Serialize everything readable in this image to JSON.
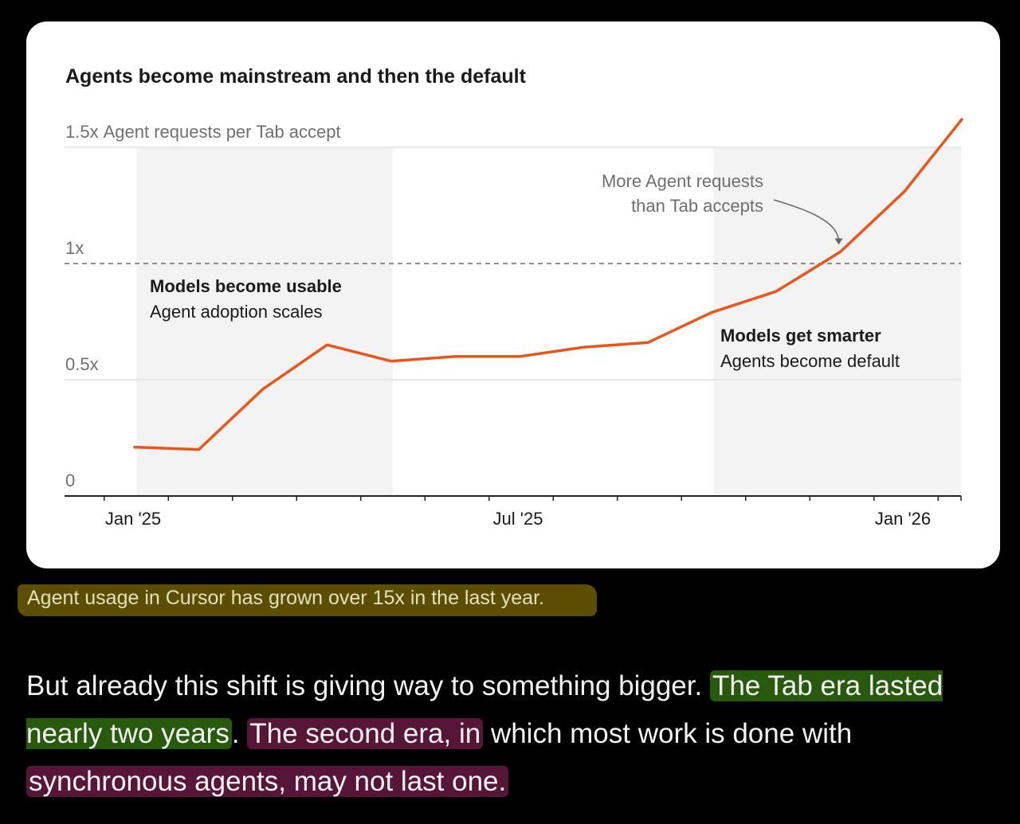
{
  "chart_data": {
    "type": "line",
    "title": "Agents become mainstream and then the default",
    "ylabel": "Agent requests per Tab accept",
    "y_tick_labels": [
      "0",
      "0.5x",
      "1x",
      "1.5x"
    ],
    "y_ticks": [
      0,
      0.5,
      1,
      1.5
    ],
    "ylim": [
      0,
      1.5
    ],
    "x_tick_labels": [
      "Jan '25",
      "Jul '25",
      "Jan '26"
    ],
    "x_tick_positions": [
      0,
      6,
      12
    ],
    "xlim": [
      -1,
      13
    ],
    "reference_line": 1,
    "grid": true,
    "series": [
      {
        "color": "#e8561b",
        "x": [
          0,
          1,
          2,
          3,
          4,
          5,
          6,
          7,
          8,
          9,
          10,
          11,
          12,
          13
        ],
        "values": [
          0.21,
          0.2,
          0.46,
          0.65,
          0.58,
          0.6,
          0.6,
          0.64,
          0.66,
          0.79,
          0.88,
          1.05,
          1.31,
          1.62
        ]
      }
    ],
    "shaded_regions": [
      {
        "x_start": 0,
        "x_end": 4,
        "title": "Models become usable",
        "text": "Agent adoption scales"
      },
      {
        "x_start": 9,
        "x_end": 13,
        "title": "Models get smarter",
        "text": "Agents become default"
      }
    ],
    "annotation": {
      "lines": [
        "More Agent requests",
        "than Tab accepts"
      ],
      "target_x": 11,
      "target_y": 1.05
    }
  },
  "caption": "Agent usage in Cursor has grown over 15x in the last year.",
  "paragraph": {
    "p1": "But already this shift is giving way to something bigger.",
    "p2": "The Tab era lasted nearly two years",
    "p3": ".",
    "p4": "The second era, in",
    "p5": "which most work is done with",
    "p6": "synchronous agents, may not last one."
  },
  "colors": {
    "background": "#000000",
    "card": "#ffffff",
    "line": "#e8561b",
    "shade": "#f3f3f3",
    "caption_highlight": "#5b4e00",
    "green_highlight": "#285a0e",
    "purple_highlight": "#571538"
  }
}
